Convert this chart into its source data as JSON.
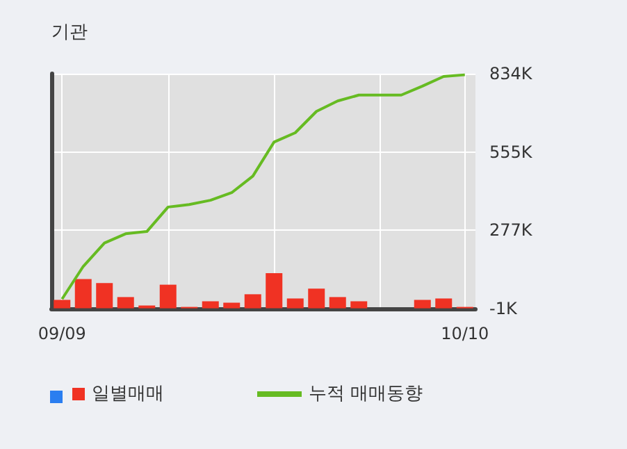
{
  "chart_data": {
    "type": "bar",
    "title": "기관",
    "categories": [
      "09/09",
      null,
      null,
      null,
      null,
      null,
      null,
      null,
      null,
      null,
      null,
      null,
      null,
      null,
      null,
      null,
      null,
      null,
      null,
      "10/10"
    ],
    "series": [
      {
        "name": "일별매매",
        "color": "#f03223",
        "values": [
          30,
          104,
          90,
          40,
          10,
          84,
          5,
          25,
          20,
          50,
          125,
          35,
          70,
          40,
          25,
          null,
          null,
          30,
          35,
          5
        ]
      },
      {
        "name": "누적 매매동향",
        "type": "line",
        "color": "#66bb22",
        "values": [
          33,
          149,
          232,
          265,
          273,
          360,
          369,
          384,
          411,
          470,
          591,
          624,
          700,
          737,
          758,
          758,
          758,
          790,
          824,
          830
        ]
      }
    ],
    "ylim": [
      -1,
      834
    ],
    "yticks": [
      {
        "value": -1,
        "label": "-1K"
      },
      {
        "value": 277,
        "label": "277K"
      },
      {
        "value": 555,
        "label": "555K"
      },
      {
        "value": 834,
        "label": "834K"
      }
    ],
    "grid": true,
    "legend": "bottom",
    "marker": "none"
  }
}
